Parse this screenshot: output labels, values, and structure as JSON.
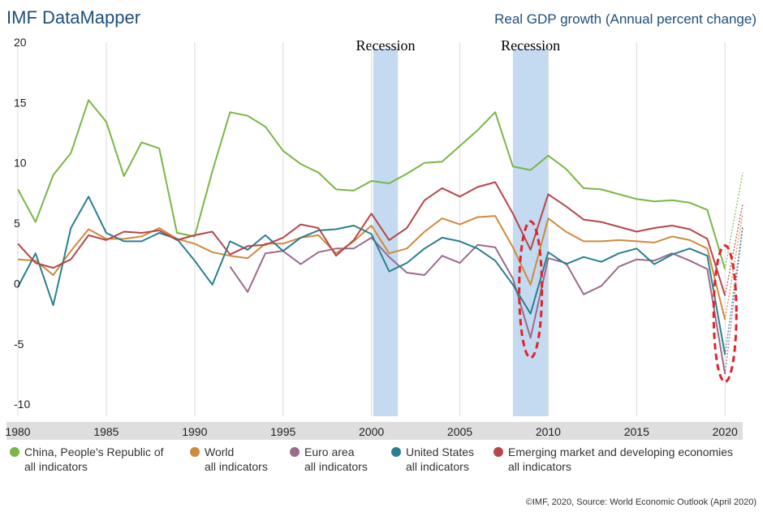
{
  "header": {
    "brand": "IMF DataMapper",
    "title": "Real GDP growth (Annual percent change)"
  },
  "footer": {
    "source": "©IMF, 2020, Source: World Economic Outlook (April 2020)"
  },
  "annotations": {
    "recession_label": "Recession"
  },
  "chart_data": {
    "type": "line",
    "title": "Real GDP growth (Annual percent change)",
    "xlim": [
      1980,
      2021
    ],
    "ylim": [
      -11,
      20
    ],
    "x_ticks": [
      1980,
      1985,
      1990,
      1995,
      2000,
      2005,
      2010,
      2015,
      2020
    ],
    "y_ticks": [
      20,
      15,
      10,
      5,
      0,
      -5,
      -10
    ],
    "grid": "vertical",
    "legend_position": "bottom",
    "recessions": [
      {
        "label": "Recession",
        "start": 2000.1,
        "end": 2001.5
      },
      {
        "label": "Recession",
        "start": 2008,
        "end": 2010
      }
    ],
    "highlight_circles": [
      {
        "x": 2009,
        "y": -0.5
      },
      {
        "x": 2020,
        "y": -2.5
      }
    ],
    "series": [
      {
        "name": "China, People's Republic of",
        "sub": "all indicators",
        "color": "#7ab648",
        "x": [
          1980,
          1981,
          1982,
          1983,
          1984,
          1985,
          1986,
          1987,
          1988,
          1989,
          1990,
          1991,
          1992,
          1993,
          1994,
          1995,
          1996,
          1997,
          1998,
          1999,
          2000,
          2001,
          2002,
          2003,
          2004,
          2005,
          2006,
          2007,
          2008,
          2009,
          2010,
          2011,
          2012,
          2013,
          2014,
          2015,
          2016,
          2017,
          2018,
          2019,
          2020
        ],
        "values": [
          7.8,
          5.1,
          9.0,
          10.8,
          15.2,
          13.4,
          8.9,
          11.7,
          11.2,
          4.2,
          3.9,
          9.3,
          14.2,
          13.9,
          13.0,
          11.0,
          9.9,
          9.2,
          7.8,
          7.7,
          8.5,
          8.3,
          9.1,
          10.0,
          10.1,
          11.4,
          12.7,
          14.2,
          9.7,
          9.4,
          10.6,
          9.5,
          7.9,
          7.8,
          7.4,
          7.0,
          6.8,
          6.9,
          6.7,
          6.1,
          1.2
        ],
        "forecast": {
          "x": [
            2020,
            2021
          ],
          "values": [
            1.2,
            9.2
          ]
        }
      },
      {
        "name": "World",
        "sub": "all indicators",
        "color": "#d08a3c",
        "x": [
          1980,
          1981,
          1982,
          1983,
          1984,
          1985,
          1986,
          1987,
          1988,
          1989,
          1990,
          1991,
          1992,
          1993,
          1994,
          1995,
          1996,
          1997,
          1998,
          1999,
          2000,
          2001,
          2002,
          2003,
          2004,
          2005,
          2006,
          2007,
          2008,
          2009,
          2010,
          2011,
          2012,
          2013,
          2014,
          2015,
          2016,
          2017,
          2018,
          2019,
          2020
        ],
        "values": [
          2.0,
          1.9,
          0.7,
          2.7,
          4.5,
          3.7,
          3.7,
          3.9,
          4.6,
          3.7,
          3.3,
          2.6,
          2.3,
          2.1,
          3.3,
          3.3,
          3.8,
          4.0,
          2.5,
          3.5,
          4.8,
          2.5,
          2.9,
          4.3,
          5.4,
          4.9,
          5.5,
          5.6,
          3.0,
          -0.1,
          5.4,
          4.3,
          3.5,
          3.5,
          3.6,
          3.5,
          3.4,
          3.9,
          3.6,
          2.9,
          -3.0
        ],
        "forecast": {
          "x": [
            2020,
            2021
          ],
          "values": [
            -3.0,
            5.8
          ]
        }
      },
      {
        "name": "Euro area",
        "sub": "all indicators",
        "color": "#9b6b8c",
        "x": [
          1992,
          1993,
          1994,
          1995,
          1996,
          1997,
          1998,
          1999,
          2000,
          2001,
          2002,
          2003,
          2004,
          2005,
          2006,
          2007,
          2008,
          2009,
          2010,
          2011,
          2012,
          2013,
          2014,
          2015,
          2016,
          2017,
          2018,
          2019,
          2020
        ],
        "values": [
          1.4,
          -0.7,
          2.5,
          2.7,
          1.6,
          2.6,
          2.9,
          2.9,
          3.8,
          2.2,
          0.9,
          0.7,
          2.3,
          1.7,
          3.2,
          3.0,
          0.4,
          -4.5,
          2.1,
          1.7,
          -0.9,
          -0.2,
          1.4,
          2.0,
          1.9,
          2.5,
          1.9,
          1.2,
          -7.5
        ],
        "forecast": {
          "x": [
            2020,
            2021
          ],
          "values": [
            -7.5,
            4.7
          ]
        }
      },
      {
        "name": "United States",
        "sub": "all indicators",
        "color": "#2a7f8f",
        "x": [
          1980,
          1981,
          1982,
          1983,
          1984,
          1985,
          1986,
          1987,
          1988,
          1989,
          1990,
          1991,
          1992,
          1993,
          1994,
          1995,
          1996,
          1997,
          1998,
          1999,
          2000,
          2001,
          2002,
          2003,
          2004,
          2005,
          2006,
          2007,
          2008,
          2009,
          2010,
          2011,
          2012,
          2013,
          2014,
          2015,
          2016,
          2017,
          2018,
          2019,
          2020
        ],
        "values": [
          -0.3,
          2.5,
          -1.8,
          4.6,
          7.2,
          4.2,
          3.5,
          3.5,
          4.2,
          3.7,
          1.9,
          -0.1,
          3.5,
          2.8,
          4.0,
          2.7,
          3.8,
          4.4,
          4.5,
          4.8,
          4.1,
          1.0,
          1.7,
          2.9,
          3.8,
          3.5,
          2.9,
          1.9,
          -0.1,
          -2.5,
          2.6,
          1.6,
          2.2,
          1.8,
          2.5,
          2.9,
          1.6,
          2.4,
          2.9,
          2.3,
          -5.9
        ],
        "forecast": {
          "x": [
            2020,
            2021
          ],
          "values": [
            -5.9,
            4.7
          ]
        }
      },
      {
        "name": "Emerging market and developing economies",
        "sub": "all indicators",
        "color": "#b5474b",
        "x": [
          1980,
          1981,
          1982,
          1983,
          1984,
          1985,
          1986,
          1987,
          1988,
          1989,
          1990,
          1991,
          1992,
          1993,
          1994,
          1995,
          1996,
          1997,
          1998,
          1999,
          2000,
          2001,
          2002,
          2003,
          2004,
          2005,
          2006,
          2007,
          2008,
          2009,
          2010,
          2011,
          2012,
          2013,
          2014,
          2015,
          2016,
          2017,
          2018,
          2019,
          2020
        ],
        "values": [
          3.3,
          1.7,
          1.3,
          2.0,
          4.0,
          3.6,
          4.3,
          4.2,
          4.4,
          3.6,
          4.0,
          4.3,
          2.4,
          3.1,
          3.2,
          3.8,
          4.9,
          4.6,
          2.3,
          3.6,
          5.8,
          3.6,
          4.6,
          6.9,
          7.9,
          7.2,
          8.0,
          8.4,
          5.8,
          2.8,
          7.4,
          6.4,
          5.3,
          5.1,
          4.7,
          4.3,
          4.6,
          4.8,
          4.5,
          3.7,
          -1.0
        ],
        "forecast": {
          "x": [
            2020,
            2021
          ],
          "values": [
            -1.0,
            6.6
          ]
        }
      }
    ]
  }
}
